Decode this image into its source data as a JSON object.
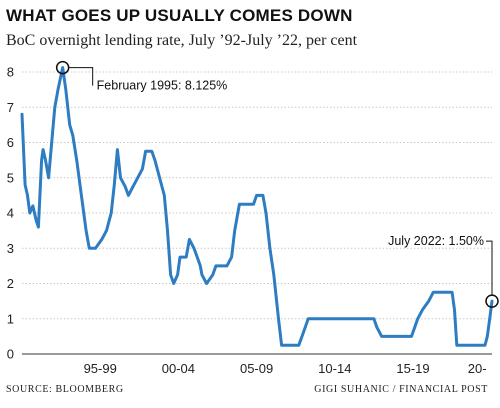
{
  "chart_data": {
    "type": "line",
    "title": "WHAT GOES UP USUALLY COMES DOWN",
    "subtitle": "BoC overnight lending rate, July ’92-July ’22, per cent",
    "xlabel": "",
    "ylabel": "",
    "ylim": [
      0,
      8
    ],
    "xlim": [
      1992.5,
      2022.55
    ],
    "yticks": [
      0,
      1,
      2,
      3,
      4,
      5,
      6,
      7,
      8
    ],
    "xtick_labels": [
      {
        "label": "95-99",
        "x": 1997.5
      },
      {
        "label": "00-04",
        "x": 2002.5
      },
      {
        "label": "05-09",
        "x": 2007.5
      },
      {
        "label": "10-14",
        "x": 2012.5
      },
      {
        "label": "15-19",
        "x": 2017.5
      },
      {
        "label": "20-",
        "x": 2021.6
      }
    ],
    "grid": true,
    "line_color": "#2e7cc2",
    "series": [
      {
        "points": [
          [
            1992.5,
            6.8
          ],
          [
            1992.7,
            4.8
          ],
          [
            1992.85,
            4.5
          ],
          [
            1993.0,
            4.0
          ],
          [
            1993.2,
            4.2
          ],
          [
            1993.4,
            3.8
          ],
          [
            1993.55,
            3.6
          ],
          [
            1993.75,
            5.5
          ],
          [
            1993.85,
            5.8
          ],
          [
            1994.0,
            5.5
          ],
          [
            1994.2,
            5.0
          ],
          [
            1994.4,
            6.0
          ],
          [
            1994.6,
            7.0
          ],
          [
            1994.8,
            7.5
          ],
          [
            1995.1,
            8.125
          ],
          [
            1995.3,
            7.5
          ],
          [
            1995.55,
            6.5
          ],
          [
            1995.75,
            6.2
          ],
          [
            1996.0,
            5.5
          ],
          [
            1996.3,
            4.5
          ],
          [
            1996.6,
            3.5
          ],
          [
            1996.8,
            3.0
          ],
          [
            1997.2,
            3.0
          ],
          [
            1997.6,
            3.25
          ],
          [
            1997.9,
            3.5
          ],
          [
            1998.2,
            4.0
          ],
          [
            1998.4,
            4.8
          ],
          [
            1998.6,
            5.8
          ],
          [
            1998.8,
            5.0
          ],
          [
            1999.1,
            4.75
          ],
          [
            1999.3,
            4.5
          ],
          [
            1999.6,
            4.75
          ],
          [
            1999.9,
            5.0
          ],
          [
            2000.2,
            5.25
          ],
          [
            2000.4,
            5.75
          ],
          [
            2000.8,
            5.75
          ],
          [
            2001.0,
            5.5
          ],
          [
            2001.3,
            5.0
          ],
          [
            2001.6,
            4.5
          ],
          [
            2001.8,
            3.5
          ],
          [
            2002.0,
            2.25
          ],
          [
            2002.2,
            2.0
          ],
          [
            2002.45,
            2.25
          ],
          [
            2002.6,
            2.75
          ],
          [
            2003.0,
            2.75
          ],
          [
            2003.2,
            3.25
          ],
          [
            2003.5,
            3.0
          ],
          [
            2003.7,
            2.75
          ],
          [
            2003.9,
            2.5
          ],
          [
            2004.0,
            2.25
          ],
          [
            2004.3,
            2.0
          ],
          [
            2004.7,
            2.25
          ],
          [
            2004.9,
            2.5
          ],
          [
            2005.6,
            2.5
          ],
          [
            2005.9,
            2.75
          ],
          [
            2006.1,
            3.5
          ],
          [
            2006.4,
            4.25
          ],
          [
            2006.7,
            4.25
          ],
          [
            2007.3,
            4.25
          ],
          [
            2007.5,
            4.5
          ],
          [
            2007.9,
            4.5
          ],
          [
            2008.1,
            4.0
          ],
          [
            2008.35,
            3.0
          ],
          [
            2008.6,
            2.25
          ],
          [
            2008.9,
            1.0
          ],
          [
            2009.1,
            0.25
          ],
          [
            2010.2,
            0.25
          ],
          [
            2010.4,
            0.5
          ],
          [
            2010.6,
            0.75
          ],
          [
            2010.8,
            1.0
          ],
          [
            2015.0,
            1.0
          ],
          [
            2015.2,
            0.75
          ],
          [
            2015.5,
            0.5
          ],
          [
            2017.4,
            0.5
          ],
          [
            2017.6,
            0.75
          ],
          [
            2017.8,
            1.0
          ],
          [
            2018.1,
            1.25
          ],
          [
            2018.5,
            1.5
          ],
          [
            2018.8,
            1.75
          ],
          [
            2020.0,
            1.75
          ],
          [
            2020.15,
            1.25
          ],
          [
            2020.3,
            0.25
          ],
          [
            2022.1,
            0.25
          ],
          [
            2022.25,
            0.5
          ],
          [
            2022.4,
            1.0
          ],
          [
            2022.55,
            1.5
          ]
        ]
      }
    ],
    "annotations": [
      {
        "text": "February 1995: 8.125%",
        "x": 1995.1,
        "y": 8.125
      },
      {
        "text": "July 2022: 1.50%",
        "x": 2022.55,
        "y": 1.5
      }
    ]
  },
  "footer": {
    "source": "SOURCE: BLOOMBERG",
    "credit": "GIGI SUHANIC / FINANCIAL POST"
  }
}
